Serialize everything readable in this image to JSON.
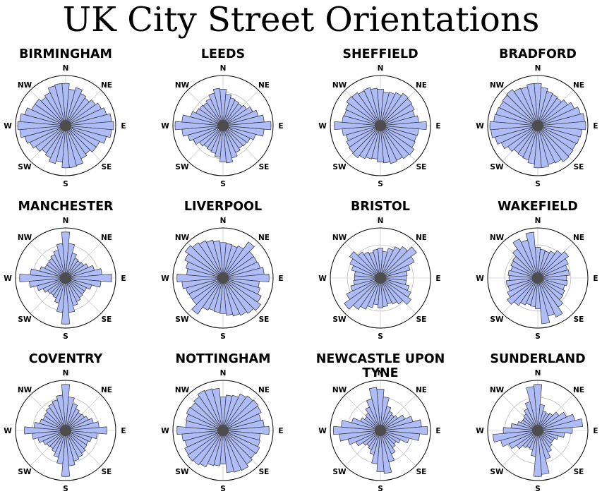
{
  "title": "UK City Street Orientations",
  "direction_labels": [
    "N",
    "NE",
    "E",
    "SE",
    "S",
    "SW",
    "W",
    "NW"
  ],
  "colors": {
    "bar_fill": "#aebcf8",
    "bar_stroke": "#333333",
    "center": "#4d4d4d",
    "grid": "#bbbbbb"
  },
  "chart_data": [
    {
      "type": "polar-bar",
      "title": "BIRMINGHAM",
      "bins": 36,
      "values": [
        0.88,
        0.76,
        0.82,
        0.74,
        0.7,
        0.76,
        0.82,
        0.88,
        0.96,
        1.0,
        0.96,
        0.88,
        0.78,
        0.78,
        0.72,
        0.76,
        0.86,
        0.88,
        0.88,
        0.76,
        0.82,
        0.74,
        0.7,
        0.76,
        0.82,
        0.88,
        0.96,
        1.0,
        0.96,
        0.88,
        0.78,
        0.78,
        0.72,
        0.76,
        0.86,
        0.88
      ]
    },
    {
      "type": "polar-bar",
      "title": "LEEDS",
      "bins": 36,
      "values": [
        0.76,
        0.66,
        0.6,
        0.58,
        0.56,
        0.6,
        0.68,
        0.76,
        0.86,
        1.0,
        0.86,
        0.7,
        0.62,
        0.6,
        0.58,
        0.62,
        0.7,
        0.78,
        0.76,
        0.66,
        0.6,
        0.58,
        0.56,
        0.6,
        0.68,
        0.76,
        0.86,
        1.0,
        0.86,
        0.7,
        0.62,
        0.6,
        0.58,
        0.62,
        0.7,
        0.78
      ]
    },
    {
      "type": "polar-bar",
      "title": "SHEFFIELD",
      "bins": 36,
      "values": [
        0.76,
        0.7,
        0.72,
        0.76,
        0.82,
        0.8,
        0.78,
        0.74,
        0.8,
        0.96,
        0.8,
        0.78,
        0.8,
        0.86,
        0.84,
        0.8,
        0.82,
        0.78,
        0.76,
        0.7,
        0.72,
        0.76,
        0.82,
        0.8,
        0.78,
        0.74,
        0.8,
        0.96,
        0.8,
        0.78,
        0.8,
        0.86,
        0.84,
        0.8,
        0.82,
        0.78
      ]
    },
    {
      "type": "polar-bar",
      "title": "BRADFORD",
      "bins": 36,
      "values": [
        0.88,
        0.8,
        0.74,
        0.72,
        0.7,
        0.76,
        0.84,
        0.92,
        0.98,
        1.0,
        0.92,
        0.9,
        0.88,
        0.9,
        0.92,
        0.86,
        0.84,
        0.88,
        0.88,
        0.8,
        0.74,
        0.72,
        0.7,
        0.76,
        0.84,
        0.92,
        0.98,
        1.0,
        0.92,
        0.9,
        0.88,
        0.9,
        0.92,
        0.86,
        0.84,
        0.88
      ]
    },
    {
      "type": "polar-bar",
      "title": "MANCHESTER",
      "bins": 36,
      "values": [
        0.96,
        0.72,
        0.54,
        0.46,
        0.44,
        0.46,
        0.52,
        0.62,
        0.76,
        0.96,
        0.74,
        0.56,
        0.48,
        0.48,
        0.5,
        0.54,
        0.6,
        0.72,
        0.96,
        0.72,
        0.54,
        0.46,
        0.44,
        0.46,
        0.52,
        0.62,
        0.76,
        0.96,
        0.74,
        0.56,
        0.48,
        0.48,
        0.5,
        0.54,
        0.6,
        0.72
      ]
    },
    {
      "type": "polar-bar",
      "title": "LIVERPOOL",
      "bins": 36,
      "values": [
        0.74,
        0.72,
        0.7,
        0.74,
        0.92,
        0.78,
        0.78,
        0.8,
        0.86,
        0.96,
        0.76,
        0.8,
        0.88,
        0.96,
        0.9,
        0.86,
        0.82,
        0.78,
        0.74,
        0.72,
        0.7,
        0.74,
        0.92,
        0.78,
        0.78,
        0.8,
        0.86,
        0.96,
        0.76,
        0.8,
        0.88,
        0.96,
        0.9,
        0.86,
        0.82,
        0.78
      ]
    },
    {
      "type": "polar-bar",
      "title": "BRISTOL",
      "bins": 36,
      "values": [
        0.62,
        0.56,
        0.64,
        0.72,
        0.8,
        0.92,
        0.78,
        0.64,
        0.56,
        0.54,
        0.54,
        0.62,
        0.7,
        0.78,
        0.66,
        0.6,
        0.56,
        0.6,
        0.62,
        0.56,
        0.64,
        0.72,
        0.8,
        0.92,
        0.78,
        0.64,
        0.56,
        0.54,
        0.54,
        0.62,
        0.7,
        0.78,
        0.66,
        0.6,
        0.56,
        0.6
      ]
    },
    {
      "type": "polar-bar",
      "title": "WAKEFIELD",
      "bins": 36,
      "values": [
        0.64,
        0.6,
        0.58,
        0.62,
        0.7,
        0.78,
        0.7,
        0.64,
        0.66,
        0.6,
        0.62,
        0.58,
        0.62,
        0.64,
        0.74,
        0.9,
        0.82,
        0.96,
        0.64,
        0.6,
        0.58,
        0.62,
        0.7,
        0.78,
        0.7,
        0.64,
        0.66,
        0.6,
        0.62,
        0.58,
        0.62,
        0.64,
        0.74,
        0.9,
        0.82,
        0.96
      ]
    },
    {
      "type": "polar-bar",
      "title": "COVENTRY",
      "bins": 36,
      "values": [
        0.96,
        0.7,
        0.58,
        0.5,
        0.46,
        0.48,
        0.52,
        0.6,
        0.7,
        0.86,
        0.66,
        0.56,
        0.52,
        0.54,
        0.58,
        0.62,
        0.66,
        0.74,
        0.96,
        0.7,
        0.58,
        0.5,
        0.46,
        0.48,
        0.52,
        0.6,
        0.7,
        0.86,
        0.66,
        0.56,
        0.52,
        0.54,
        0.58,
        0.62,
        0.66,
        0.74
      ]
    },
    {
      "type": "polar-bar",
      "title": "NOTTINGHAM",
      "bins": 36,
      "values": [
        0.7,
        0.74,
        0.76,
        0.84,
        0.88,
        0.9,
        0.88,
        0.82,
        0.86,
        0.96,
        0.78,
        0.8,
        0.84,
        0.82,
        0.86,
        0.92,
        0.9,
        0.88,
        0.7,
        0.74,
        0.76,
        0.84,
        0.88,
        0.9,
        0.88,
        0.82,
        0.86,
        0.96,
        0.78,
        0.8,
        0.84,
        0.82,
        0.86,
        0.92,
        0.9,
        0.88
      ]
    },
    {
      "type": "polar-bar",
      "title": "NEWCASTLE UPON TYNE",
      "bins": 36,
      "values": [
        0.86,
        0.7,
        0.52,
        0.44,
        0.4,
        0.44,
        0.56,
        0.7,
        0.86,
        0.98,
        0.82,
        0.62,
        0.46,
        0.4,
        0.44,
        0.54,
        0.68,
        0.9,
        0.86,
        0.7,
        0.52,
        0.44,
        0.4,
        0.44,
        0.56,
        0.7,
        0.86,
        0.98,
        0.82,
        0.62,
        0.46,
        0.4,
        0.44,
        0.54,
        0.68,
        0.9
      ]
    },
    {
      "type": "polar-bar",
      "title": "SUNDERLAND",
      "bins": 36,
      "values": [
        0.96,
        0.54,
        0.42,
        0.4,
        0.44,
        0.54,
        0.66,
        0.8,
        0.94,
        0.72,
        0.56,
        0.44,
        0.38,
        0.38,
        0.42,
        0.5,
        0.62,
        0.92,
        0.96,
        0.54,
        0.42,
        0.4,
        0.44,
        0.54,
        0.66,
        0.8,
        0.94,
        0.72,
        0.56,
        0.44,
        0.38,
        0.38,
        0.42,
        0.5,
        0.62,
        0.92
      ]
    }
  ]
}
